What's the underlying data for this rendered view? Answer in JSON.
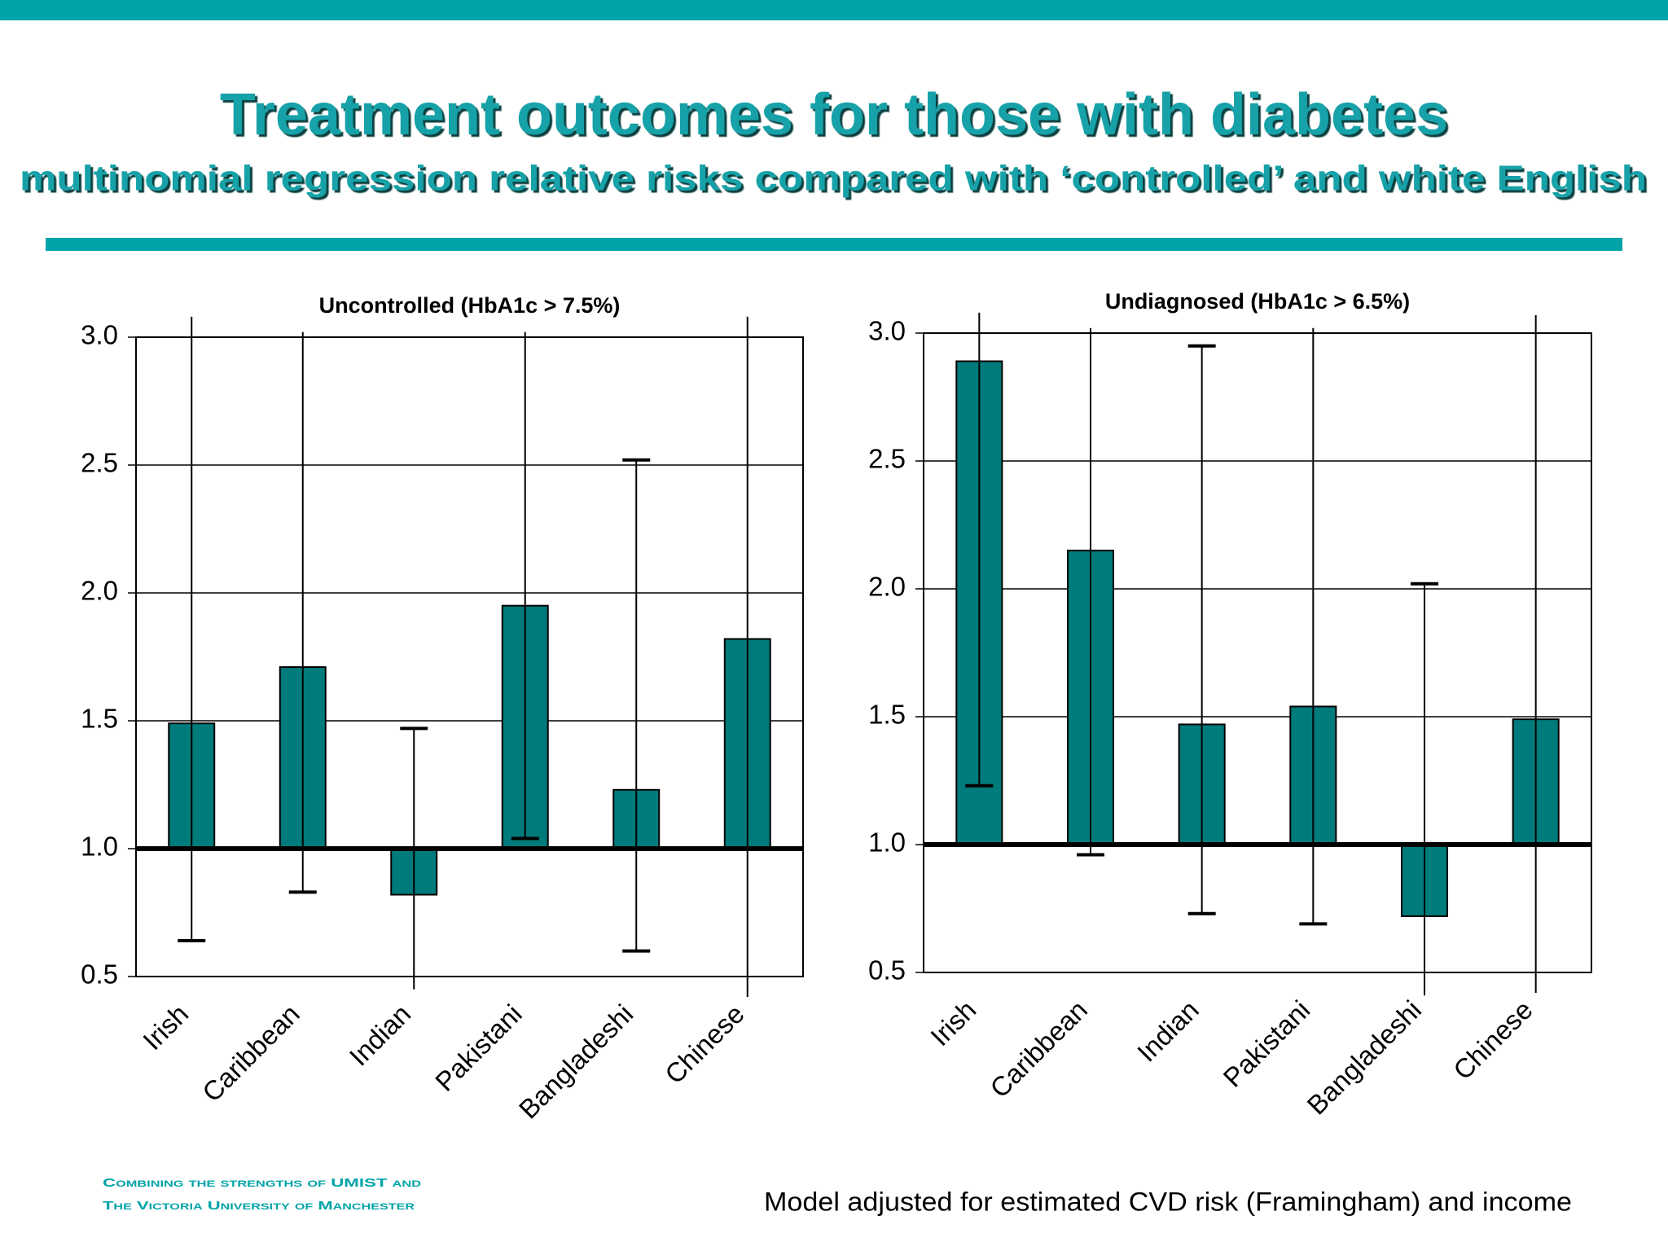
{
  "header": {
    "title": "Treatment outcomes for those with diabetes",
    "subtitle": "multinomial regression relative risks compared with ‘controlled’ and white English"
  },
  "chart_data": [
    {
      "type": "bar",
      "title": "Uncontrolled (HbA1c > 7.5%)",
      "categories": [
        "Irish",
        "Caribbean",
        "Indian",
        "Pakistani",
        "Bangladeshi",
        "Chinese"
      ],
      "values": [
        1.49,
        1.71,
        0.82,
        1.95,
        1.23,
        1.82
      ],
      "error_low": [
        0.64,
        0.83,
        0.45,
        1.04,
        0.6,
        0.42
      ],
      "error_high": [
        3.08,
        3.02,
        1.47,
        3.02,
        2.52,
        3.08
      ],
      "color": "#007b7b",
      "baseline": 1,
      "ylim": [
        0.5,
        3.0
      ],
      "yticks": [
        0.5,
        {
          "value": 1,
          "label": "1.0"
        },
        1.5,
        {
          "value": 2,
          "label": "2.0"
        },
        2.5,
        {
          "value": 3,
          "label": "3.0"
        }
      ],
      "grid": true
    },
    {
      "type": "bar",
      "title": "Undiagnosed (HbA1c > 6.5%)",
      "categories": [
        "Irish",
        "Caribbean",
        "Indian",
        "Pakistani",
        "Bangladeshi",
        "Chinese"
      ],
      "values": [
        2.89,
        2.15,
        1.47,
        1.54,
        0.72,
        1.49
      ],
      "error_low": [
        1.23,
        0.96,
        0.73,
        0.69,
        0.41,
        0.42
      ],
      "error_high": [
        3.08,
        3.02,
        2.95,
        3.02,
        2.02,
        3.07
      ],
      "color": "#007b7b",
      "baseline": 1,
      "ylim": [
        0.5,
        3.0
      ],
      "yticks": [
        0.5,
        {
          "value": 1,
          "label": "1.0"
        },
        1.5,
        {
          "value": 2,
          "label": "2.0"
        },
        2.5,
        {
          "value": 3,
          "label": "3.0"
        }
      ],
      "grid": true
    }
  ],
  "footer": {
    "logo": [
      "Combining the strengths of UMIST and",
      "The Victoria University of Manchester"
    ],
    "note": "Model adjusted for estimated CVD risk (Framingham) and income"
  }
}
